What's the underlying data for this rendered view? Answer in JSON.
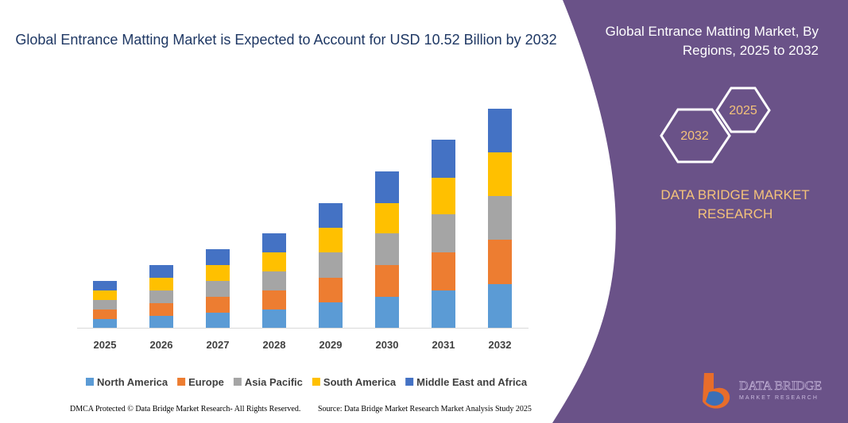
{
  "chart_data": {
    "type": "stacked_bar",
    "title": "Global Entrance Matting Market is Expected to Account for USD 10.52 Billion by 2032",
    "categories": [
      "2025",
      "2026",
      "2027",
      "2028",
      "2029",
      "2030",
      "2031",
      "2032"
    ],
    "series": [
      {
        "name": "North America",
        "color": "#5b9bd5",
        "values": [
          11,
          15,
          19,
          23,
          32,
          39,
          47,
          55
        ]
      },
      {
        "name": "Europe",
        "color": "#ed7d31",
        "values": [
          12,
          16,
          20,
          24,
          31,
          40,
          48,
          56
        ]
      },
      {
        "name": "Asia Pacific",
        "color": "#a5a5a5",
        "values": [
          12,
          16,
          20,
          24,
          32,
          40,
          48,
          55
        ]
      },
      {
        "name": "South America",
        "color": "#ffc000",
        "values": [
          12,
          16,
          20,
          24,
          31,
          38,
          46,
          55
        ]
      },
      {
        "name": "Middle East and Africa",
        "color": "#4472c4",
        "values": [
          12,
          16,
          20,
          24,
          31,
          40,
          48,
          55
        ]
      }
    ],
    "legend": "bottom"
  },
  "side_panel": {
    "title": "Global Entrance Matting Market, By Regions, 2025 to 2032",
    "hex_start": "2025",
    "hex_end": "2032",
    "brand": "DATA BRIDGE MARKET RESEARCH",
    "logo_name": "DATA BRIDGE",
    "logo_tagline": "MARKET RESEARCH"
  },
  "footer": {
    "left": "DMCA Protected © Data Bridge Market Research- All Rights Reserved.",
    "right": "Source: Data Bridge Market Research Market Analysis Study 2025"
  }
}
